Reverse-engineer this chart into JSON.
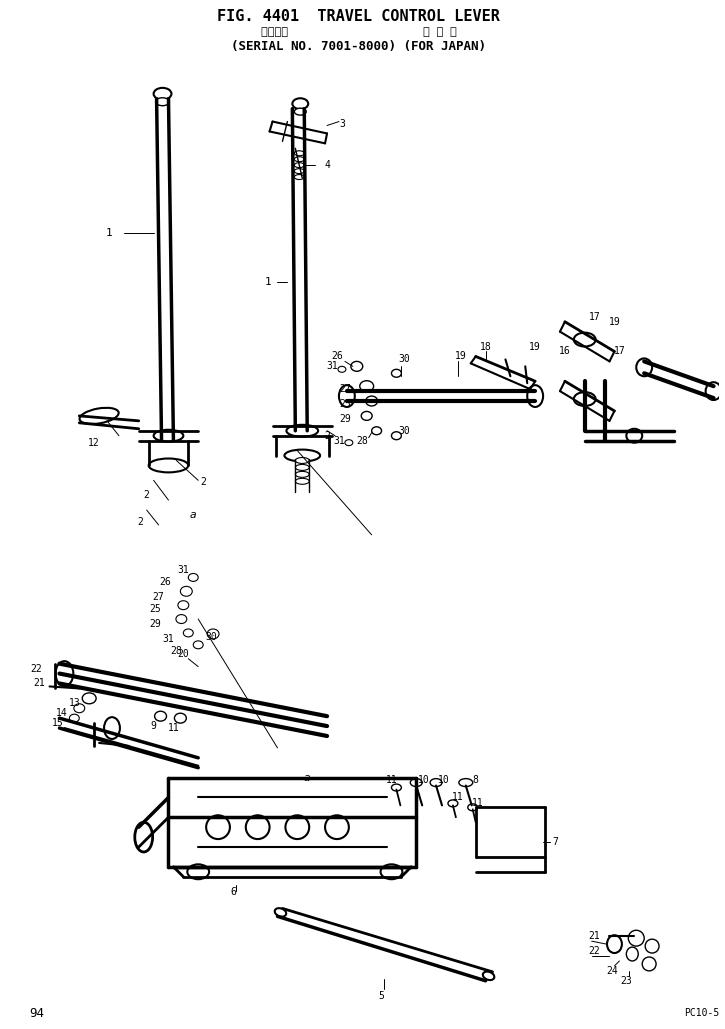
{
  "title_line1": "FIG. 4401  TRAVEL CONTROL LEVER",
  "title_line2": "適用号機                    国 内 向",
  "title_line3": "(SERIAL NO. 7001-8000) (FOR JAPAN)",
  "page_number": "94",
  "model": "PC10-5",
  "figure_number": "FIG. 4401",
  "bg_color": "#ffffff",
  "line_color": "#000000",
  "text_color": "#000000",
  "fig_width": 7.25,
  "fig_height": 10.29,
  "dpi": 100
}
